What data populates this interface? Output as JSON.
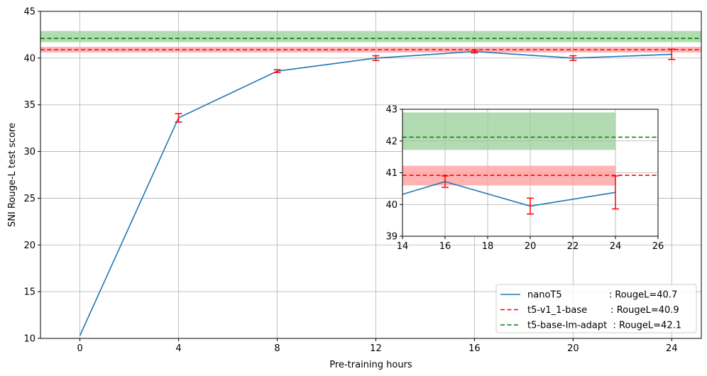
{
  "chart_data": [
    {
      "type": "line",
      "role": "main",
      "xlabel": "Pre-training hours",
      "ylabel": "SNI Rouge-L test score",
      "xlim": [
        -1.6,
        25.2
      ],
      "ylim": [
        10,
        45
      ],
      "xticks": [
        0,
        4,
        8,
        12,
        16,
        20,
        24
      ],
      "yticks": [
        10,
        15,
        20,
        25,
        30,
        35,
        40,
        45
      ],
      "grid": true,
      "legend_position": "lower-right",
      "series": [
        {
          "name": "nanoT5",
          "legend_label": "nanoT5                : RougeL=40.7",
          "color": "#1f77b4",
          "x": [
            0,
            4,
            8,
            12,
            16,
            20,
            24
          ],
          "y": [
            10.3,
            33.6,
            38.6,
            40.0,
            40.7,
            40.0,
            40.4
          ],
          "error": [
            0,
            0.45,
            0.15,
            0.25,
            0.15,
            0.25,
            0.55
          ]
        }
      ],
      "reference_lines": [
        {
          "name": "t5-v1_1-base",
          "legend_label": "t5-v1_1-base        : RougeL=40.9",
          "color": "#ff0000",
          "value": 40.9,
          "band": [
            40.6,
            41.2
          ],
          "band_color": "#ff9999"
        },
        {
          "name": "t5-base-lm-adapt",
          "legend_label": "t5-base-lm-adapt  : RougeL=42.1",
          "color": "#008000",
          "value": 42.1,
          "band": [
            41.7,
            42.9
          ],
          "band_color": "#98cf98"
        }
      ]
    },
    {
      "type": "line",
      "role": "inset",
      "xlim": [
        14,
        26
      ],
      "ylim": [
        39,
        43
      ],
      "xticks": [
        14,
        16,
        18,
        20,
        22,
        24,
        26
      ],
      "yticks": [
        39,
        40,
        41,
        42,
        43
      ],
      "grid": true,
      "band_xrange": [
        14,
        24
      ],
      "series": [
        {
          "name": "nanoT5",
          "color": "#1f77b4",
          "x": [
            14,
            16,
            20,
            24
          ],
          "y": [
            40.32,
            40.72,
            39.95,
            40.38
          ],
          "error": [
            0,
            0.18,
            0.25,
            0.52
          ]
        }
      ],
      "reference_lines": [
        {
          "name": "t5-v1_1-base",
          "color": "#ff0000",
          "value": 40.92,
          "band": [
            40.6,
            41.22
          ],
          "band_color": "#ff9999"
        },
        {
          "name": "t5-base-lm-adapt",
          "color": "#008000",
          "value": 42.12,
          "band": [
            41.72,
            42.9
          ],
          "band_color": "#98cf98"
        }
      ]
    }
  ]
}
